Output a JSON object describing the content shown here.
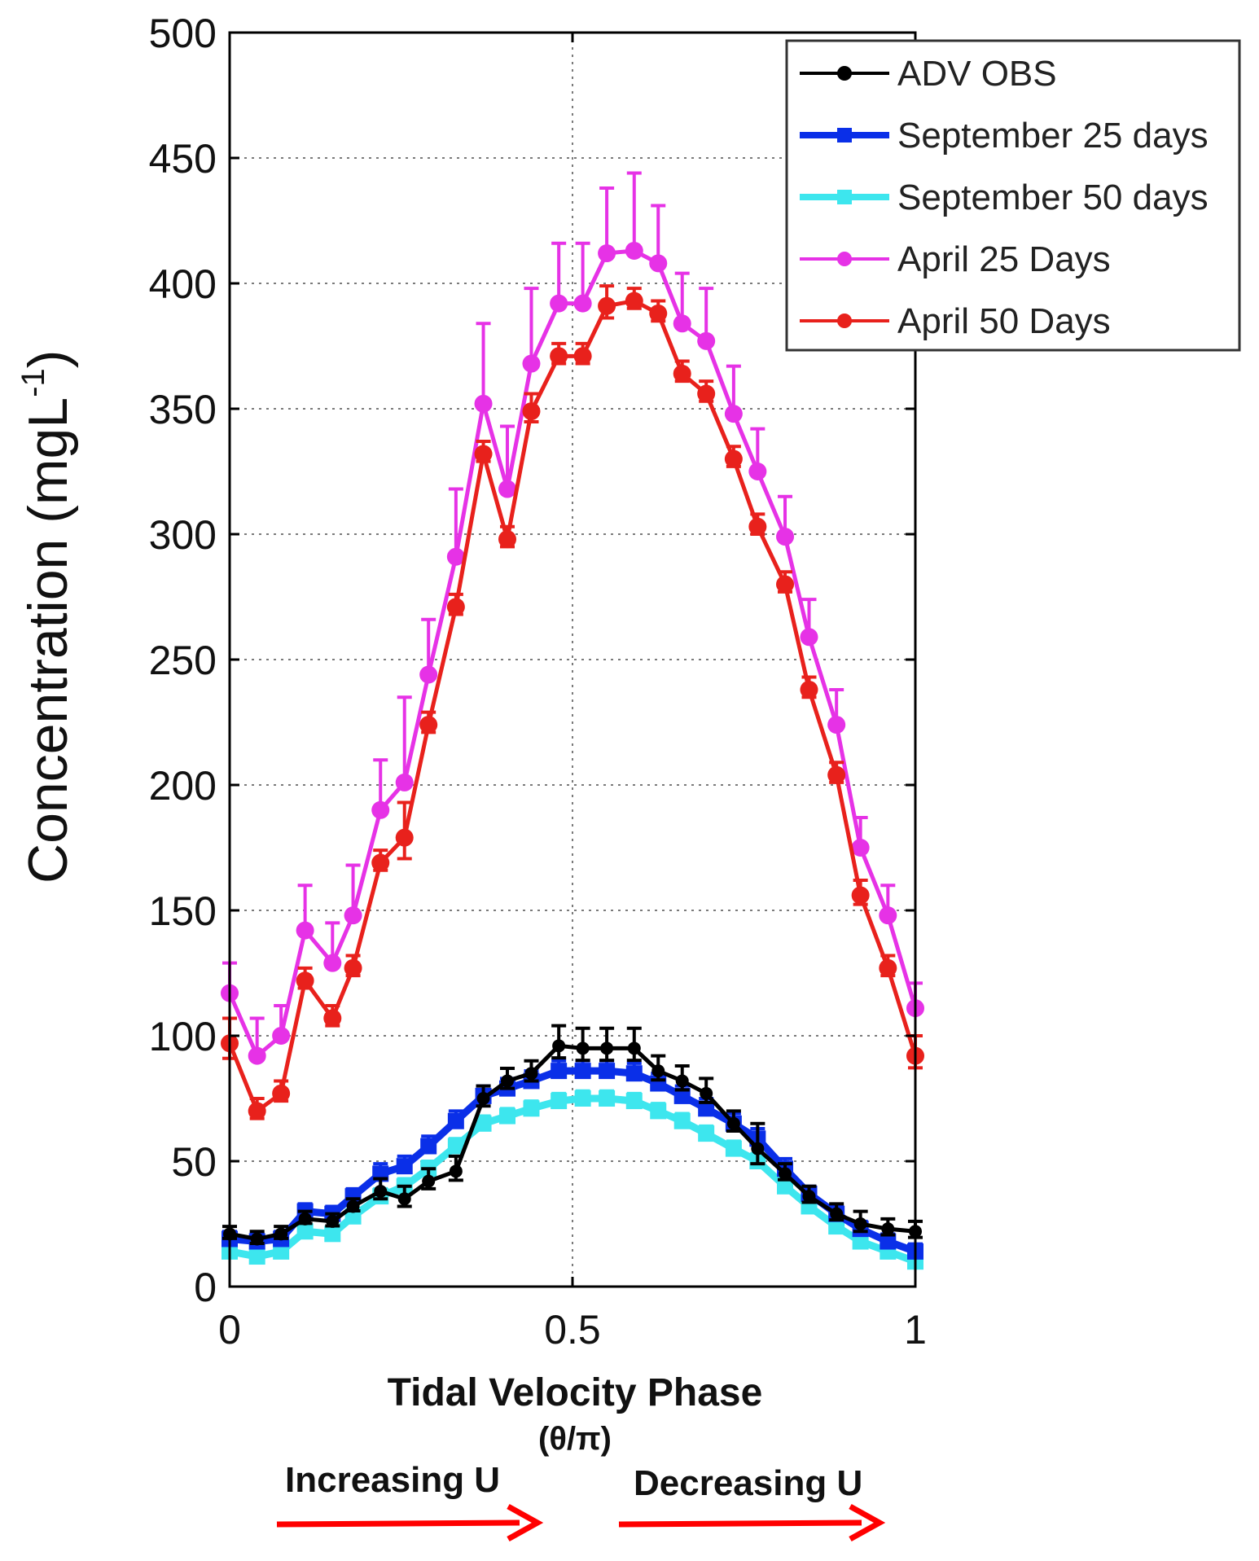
{
  "chart_data": {
    "type": "line",
    "title": "",
    "xlabel": "Tidal Velocity Phase",
    "xlabel_sub": "(θ/π)",
    "ylabel": "Concentration (mgL",
    "ylabel_sup": "-1",
    "ylabel_close": ")",
    "xlim": [
      0,
      1
    ],
    "ylim": [
      0,
      500
    ],
    "xticks": [
      "0",
      "0.5",
      "1"
    ],
    "yticks": [
      "0",
      "50",
      "100",
      "150",
      "200",
      "250",
      "300",
      "350",
      "400",
      "450",
      "500"
    ],
    "grid": true,
    "legend_position": "top-right",
    "x": [
      0.0,
      0.04,
      0.075,
      0.11,
      0.15,
      0.18,
      0.22,
      0.255,
      0.29,
      0.33,
      0.37,
      0.405,
      0.44,
      0.48,
      0.515,
      0.55,
      0.59,
      0.625,
      0.66,
      0.695,
      0.735,
      0.77,
      0.81,
      0.845,
      0.885,
      0.92,
      0.96,
      1.0
    ],
    "series": [
      {
        "name": "ADV OBS",
        "color": "#000000",
        "values": [
          21,
          19,
          21,
          27,
          26,
          32,
          38,
          35,
          42,
          46,
          75,
          82,
          85,
          96,
          95,
          95,
          95,
          86,
          82,
          77,
          65,
          55,
          45,
          36,
          29,
          25,
          23,
          22
        ],
        "errors": [
          3,
          3,
          3,
          3,
          3,
          3,
          5,
          5,
          5,
          6,
          5,
          5,
          5,
          8,
          8,
          8,
          8,
          6,
          6,
          6,
          5,
          10,
          4,
          4,
          4,
          5,
          4,
          4
        ]
      },
      {
        "name": "September 25 days",
        "color": "#0a2fe8",
        "values": [
          19,
          18,
          19,
          30,
          29,
          36,
          45,
          48,
          56,
          66,
          76,
          79,
          82,
          86,
          86,
          86,
          85,
          81,
          76,
          71,
          65,
          59,
          47,
          37,
          29,
          23,
          18,
          14
        ],
        "errors": [
          3,
          3,
          3,
          3,
          3,
          3,
          4,
          4,
          4,
          4,
          4,
          4,
          4,
          4,
          4,
          4,
          4,
          4,
          4,
          4,
          4,
          4,
          4,
          3,
          3,
          3,
          3,
          3
        ]
      },
      {
        "name": "September 50 days",
        "color": "#3de6ee",
        "values": [
          14,
          12,
          14,
          22,
          21,
          28,
          36,
          40,
          47,
          56,
          65,
          68,
          71,
          74,
          75,
          75,
          74,
          70,
          66,
          61,
          55,
          50,
          40,
          32,
          24,
          18,
          14,
          10
        ],
        "errors": [
          2,
          2,
          2,
          2,
          2,
          2,
          3,
          3,
          3,
          3,
          3,
          3,
          3,
          3,
          3,
          3,
          3,
          3,
          3,
          3,
          3,
          3,
          3,
          2,
          2,
          2,
          2,
          2
        ]
      },
      {
        "name": "April 25 Days",
        "color": "#e632e6",
        "values": [
          117,
          92,
          100,
          142,
          129,
          148,
          190,
          201,
          244,
          291,
          352,
          318,
          368,
          392,
          392,
          412,
          413,
          408,
          384,
          377,
          348,
          325,
          299,
          259,
          224,
          175,
          148,
          111
        ],
        "errors": [
          12,
          15,
          12,
          18,
          16,
          20,
          20,
          34,
          22,
          27,
          32,
          25,
          30,
          24,
          24,
          26,
          31,
          23,
          20,
          21,
          19,
          17,
          16,
          15,
          14,
          12,
          12,
          10
        ]
      },
      {
        "name": "April 50 Days",
        "color": "#e8211c",
        "values": [
          97,
          70,
          77,
          122,
          107,
          127,
          169,
          179,
          224,
          271,
          332,
          298,
          349,
          371,
          371,
          391,
          393,
          388,
          364,
          356,
          330,
          303,
          280,
          238,
          204,
          156,
          127,
          92
        ],
        "errors": [
          10,
          5,
          5,
          5,
          5,
          5,
          5,
          14,
          5,
          5,
          5,
          5,
          7,
          5,
          5,
          8,
          5,
          5,
          5,
          5,
          5,
          5,
          5,
          5,
          5,
          6,
          5,
          8
        ]
      }
    ],
    "annotations": {
      "increasing": "Increasing  U",
      "decreasing": "Decreasing U",
      "arrow_color": "#ff0000"
    }
  }
}
